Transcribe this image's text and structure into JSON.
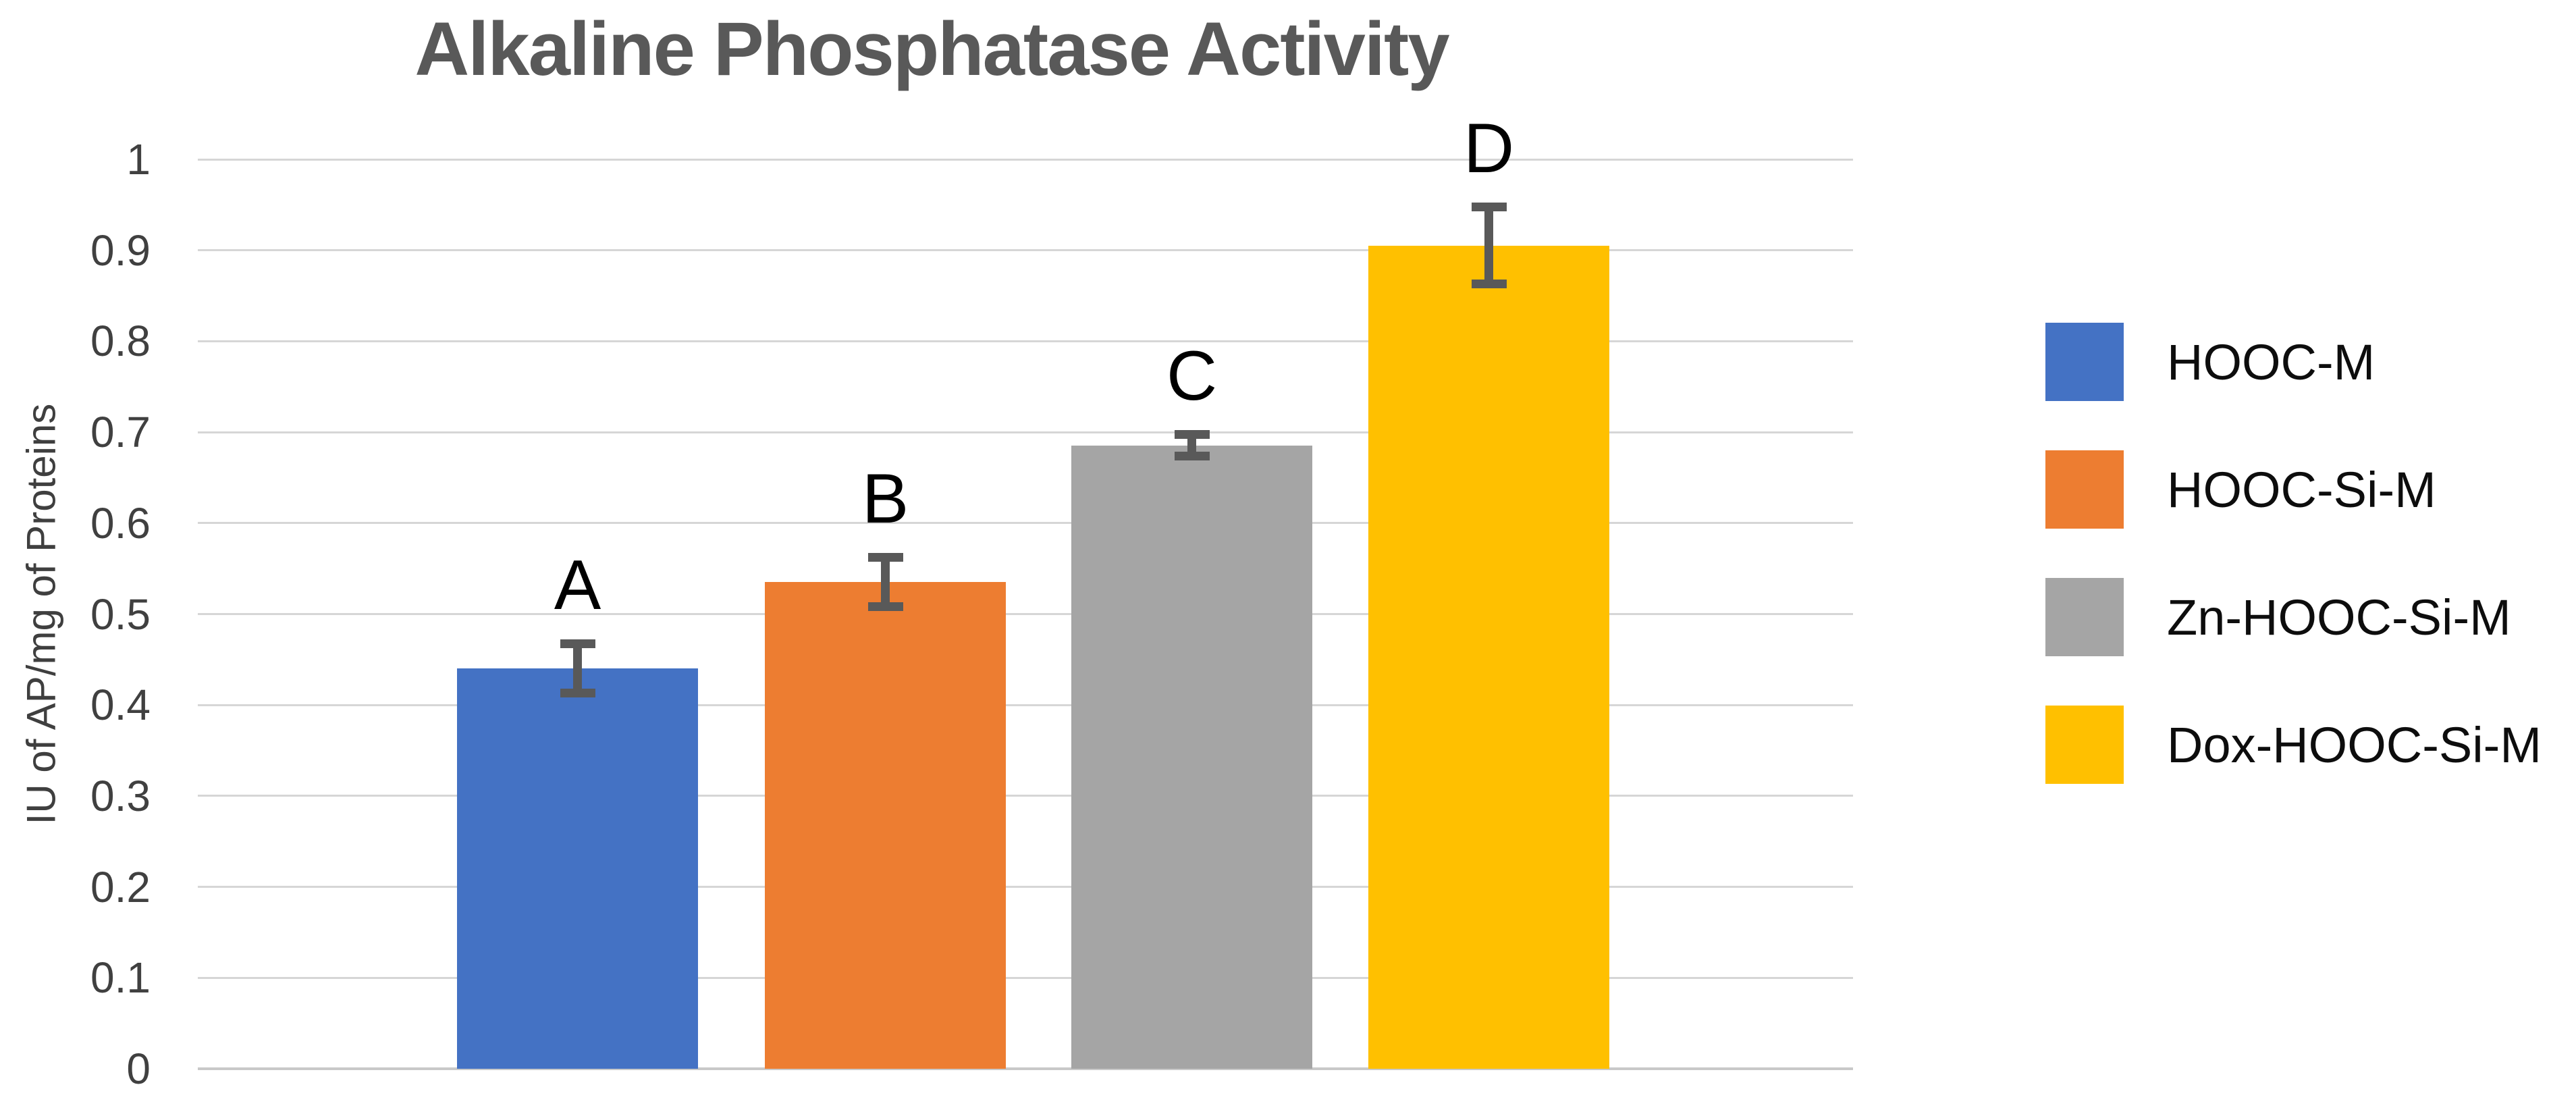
{
  "chart_data": {
    "type": "bar",
    "title": "Alkaline Phosphatase Activity",
    "ylabel": "IU of AP/mg of Proteins",
    "xlabel": "",
    "ylim": [
      0,
      1
    ],
    "ytick_step": 0.1,
    "yticks_top_to_bottom": [
      "1",
      "0.9",
      "0.8",
      "0.7",
      "0.6",
      "0.5",
      "0.4",
      "0.3",
      "0.2",
      "0.1",
      "0"
    ],
    "grid": true,
    "legend_position": "right",
    "categories": [
      "HOOC-M",
      "HOOC-Si-M",
      "Zn-HOOC-Si-M",
      "Dox-HOOC-Si-M"
    ],
    "series": [
      {
        "name": "HOOC-M",
        "letter": "A",
        "value": 0.44,
        "error": 0.027,
        "color": "#4472C4"
      },
      {
        "name": "HOOC-Si-M",
        "letter": "B",
        "value": 0.535,
        "error": 0.027,
        "color": "#ED7D31"
      },
      {
        "name": "Zn-HOOC-Si-M",
        "letter": "C",
        "value": 0.685,
        "error": 0.012,
        "color": "#A5A5A5"
      },
      {
        "name": "Dox-HOOC-Si-M",
        "letter": "D",
        "value": 0.905,
        "error": 0.042,
        "color": "#FFC000"
      }
    ]
  },
  "style": {
    "background": "#FFFFFF",
    "title_color": "#595959",
    "tick_label_color": "#404040",
    "axis_title_color": "#3F3F3F",
    "bar_letter_color": "#000000",
    "error_bar_color": "#595959",
    "gridline_color": "#D6D6D6",
    "axis_line_color": "#C9C9C9",
    "legend_text_color": "#0D0D0D"
  }
}
